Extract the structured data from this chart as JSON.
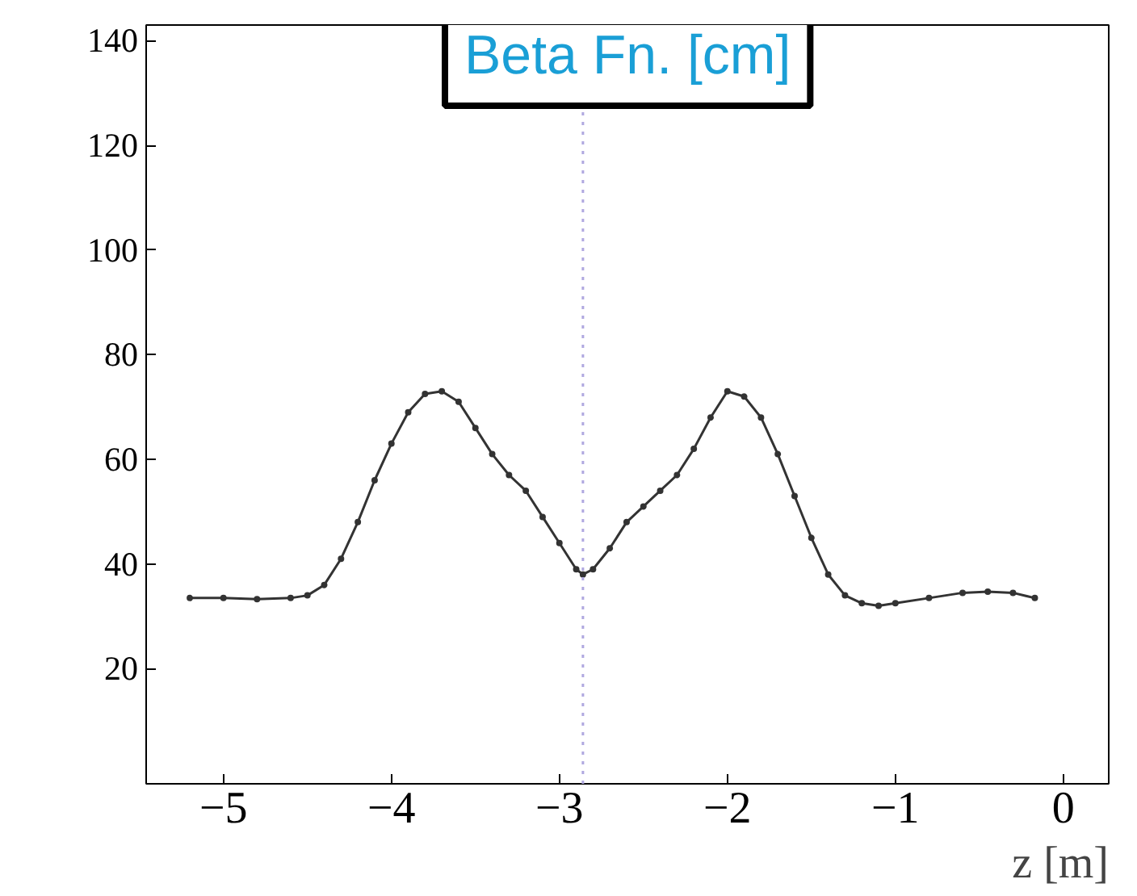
{
  "chart_data": {
    "type": "line",
    "xlabel": "z [m]",
    "annotations": [
      "Beta Fn. [cm]"
    ],
    "x": [
      -5.2,
      -5.0,
      -4.8,
      -4.6,
      -4.5,
      -4.4,
      -4.3,
      -4.2,
      -4.1,
      -4.0,
      -3.9,
      -3.8,
      -3.7,
      -3.6,
      -3.5,
      -3.4,
      -3.3,
      -3.2,
      -3.1,
      -3.0,
      -2.9,
      -2.86,
      -2.8,
      -2.7,
      -2.6,
      -2.5,
      -2.4,
      -2.3,
      -2.2,
      -2.1,
      -2.0,
      -1.9,
      -1.8,
      -1.7,
      -1.6,
      -1.5,
      -1.4,
      -1.3,
      -1.2,
      -1.1,
      -1.0,
      -0.8,
      -0.6,
      -0.45,
      -0.3,
      -0.17
    ],
    "series": [
      {
        "color": "#333333",
        "values": [
          33.5,
          33.5,
          33.3,
          33.5,
          34,
          36,
          41,
          48,
          56,
          63,
          69,
          72.5,
          73,
          71,
          66,
          61,
          57,
          54,
          49,
          44,
          39,
          38,
          39,
          43,
          48,
          51,
          54,
          57,
          62,
          68,
          73,
          72,
          68,
          61,
          53,
          45,
          38,
          34,
          32.5,
          32,
          32.5,
          33.5,
          34.5,
          34.7,
          34.5,
          33.5
        ]
      }
    ],
    "marker": "circle",
    "line_style": "solid",
    "grid": false,
    "xlim": [
      -5.46,
      0.27
    ],
    "ylim": [
      -2,
      143
    ],
    "xticks": [
      -5,
      -4,
      -3,
      -2,
      -1,
      0
    ],
    "yticks": [
      20,
      40,
      60,
      80,
      100,
      120,
      140
    ],
    "ref_lines": [
      {
        "axis": "x",
        "value": -2.86,
        "color": "#b0a8e0",
        "line_style": "dotted"
      }
    ]
  }
}
